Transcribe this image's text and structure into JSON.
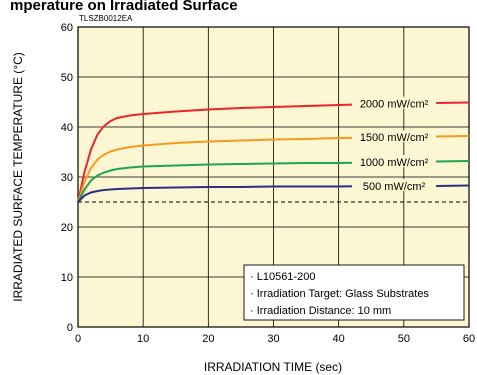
{
  "chart_data": {
    "type": "line",
    "title": "mperature on Irradiated Surface",
    "doc_id": "TLSZB0012EA",
    "xlabel": "IRRADIATION TIME  (sec)",
    "ylabel": "IRRADIATED SURFACE TEMPERATURE  (°C)",
    "xlim": [
      0,
      60
    ],
    "ylim": [
      0,
      60
    ],
    "xticks": [
      0,
      10,
      20,
      30,
      40,
      50,
      60
    ],
    "yticks": [
      0,
      10,
      20,
      30,
      40,
      50,
      60
    ],
    "grid": true,
    "background": "#fdf6d3",
    "series": [
      {
        "name": "2000 mW/cm²",
        "color": "#e8262a",
        "x": [
          0,
          1,
          2,
          3,
          4,
          5,
          6,
          8,
          10,
          15,
          20,
          25,
          30,
          35,
          40,
          45,
          50,
          55,
          60
        ],
        "y": [
          25,
          31,
          35.5,
          38.5,
          40.2,
          41.2,
          41.8,
          42.3,
          42.6,
          43.1,
          43.5,
          43.8,
          44.0,
          44.2,
          44.4,
          44.6,
          44.7,
          44.8,
          44.9
        ]
      },
      {
        "name": "1500 mW/cm²",
        "color": "#f59a1c",
        "x": [
          0,
          1,
          2,
          3,
          4,
          5,
          6,
          8,
          10,
          15,
          20,
          25,
          30,
          35,
          40,
          45,
          50,
          55,
          60
        ],
        "y": [
          25,
          29,
          31.8,
          33.5,
          34.5,
          35.1,
          35.5,
          36.0,
          36.3,
          36.8,
          37.1,
          37.3,
          37.5,
          37.6,
          37.8,
          37.9,
          38.0,
          38.1,
          38.2
        ]
      },
      {
        "name": "1000 mW/cm²",
        "color": "#1fa64a",
        "x": [
          0,
          1,
          2,
          3,
          4,
          5,
          6,
          8,
          10,
          15,
          20,
          25,
          30,
          35,
          40,
          45,
          50,
          55,
          60
        ],
        "y": [
          25,
          27.5,
          29.3,
          30.3,
          30.9,
          31.3,
          31.6,
          31.9,
          32.1,
          32.3,
          32.5,
          32.6,
          32.7,
          32.8,
          32.8,
          32.9,
          33.0,
          33.1,
          33.2
        ]
      },
      {
        "name": "500 mW/cm²",
        "color": "#2b2e83",
        "x": [
          0,
          1,
          2,
          3,
          4,
          5,
          6,
          8,
          10,
          15,
          20,
          25,
          30,
          35,
          40,
          45,
          50,
          55,
          60
        ],
        "y": [
          25,
          26.3,
          26.9,
          27.2,
          27.4,
          27.5,
          27.6,
          27.7,
          27.8,
          27.9,
          28.0,
          28.0,
          28.1,
          28.1,
          28.1,
          28.2,
          28.2,
          28.2,
          28.3
        ]
      }
    ],
    "reference_line": {
      "y": 25,
      "style": "dashed",
      "color": "#000000"
    },
    "legend": {
      "placement": "bottom-right",
      "lines": [
        "· L10561-200",
        "· Irradiation Target: Glass Substrates",
        "· Irradiation Distance: 10 mm"
      ]
    }
  }
}
